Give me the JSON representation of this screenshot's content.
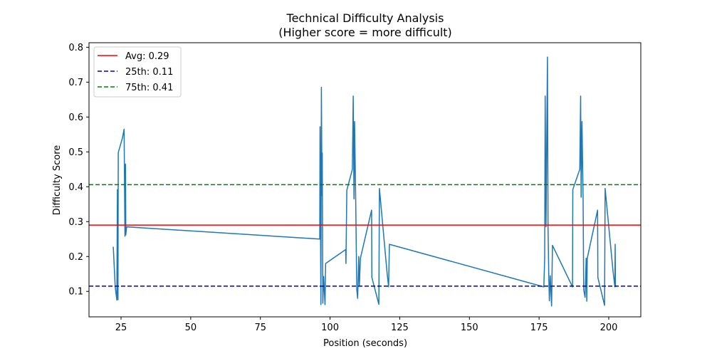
{
  "chart_data": {
    "type": "line",
    "title": "Technical Difficulty Analysis",
    "subtitle": "(Higher score = more difficult)",
    "xlabel": "Position (seconds)",
    "ylabel": "Difficulty Score",
    "xlim": [
      13.5,
      211.5
    ],
    "ylim": [
      0.027,
      0.813
    ],
    "xticks": [
      25,
      50,
      75,
      100,
      125,
      150,
      175,
      200
    ],
    "yticks": [
      0.1,
      0.2,
      0.3,
      0.4,
      0.5,
      0.6,
      0.7,
      0.8
    ],
    "grid": false,
    "legend_position": "top-left",
    "series": [
      {
        "color": "#1f77b4",
        "points": [
          [
            22.2,
            0.228
          ],
          [
            22.9,
            0.113
          ],
          [
            23.5,
            0.075
          ],
          [
            23.7,
            0.392
          ],
          [
            23.9,
            0.076
          ],
          [
            24.0,
            0.498
          ],
          [
            25.5,
            0.54
          ],
          [
            26.1,
            0.565
          ],
          [
            26.4,
            0.258
          ],
          [
            26.6,
            0.465
          ],
          [
            26.7,
            0.262
          ],
          [
            27.0,
            0.285
          ],
          [
            96.3,
            0.25
          ],
          [
            96.4,
            0.572
          ],
          [
            96.7,
            0.062
          ],
          [
            96.9,
            0.685
          ],
          [
            97.1,
            0.375
          ],
          [
            97.2,
            0.497
          ],
          [
            97.4,
            0.066
          ],
          [
            97.7,
            0.143
          ],
          [
            98.2,
            0.062
          ],
          [
            98.4,
            0.18
          ],
          [
            105.6,
            0.22
          ],
          [
            105.7,
            0.18
          ],
          [
            106.0,
            0.39
          ],
          [
            108.0,
            0.45
          ],
          [
            108.3,
            0.66
          ],
          [
            108.6,
            0.365
          ],
          [
            108.8,
            0.587
          ],
          [
            109.2,
            0.36
          ],
          [
            109.6,
            0.105
          ],
          [
            109.9,
            0.08
          ],
          [
            110.3,
            0.2
          ],
          [
            110.5,
            0.115
          ],
          [
            110.9,
            0.195
          ],
          [
            114.9,
            0.333
          ],
          [
            115.0,
            0.14
          ],
          [
            117.5,
            0.063
          ],
          [
            117.7,
            0.395
          ],
          [
            120.5,
            0.15
          ],
          [
            121.0,
            0.113
          ],
          [
            121.3,
            0.235
          ],
          [
            176.7,
            0.113
          ],
          [
            177.0,
            0.195
          ],
          [
            177.2,
            0.66
          ],
          [
            177.5,
            0.285
          ],
          [
            177.8,
            0.585
          ],
          [
            178.0,
            0.772
          ],
          [
            178.2,
            0.285
          ],
          [
            178.5,
            0.14
          ],
          [
            178.7,
            0.073
          ],
          [
            179.0,
            0.145
          ],
          [
            179.5,
            0.058
          ],
          [
            179.8,
            0.232
          ],
          [
            187.0,
            0.113
          ],
          [
            187.1,
            0.392
          ],
          [
            189.6,
            0.45
          ],
          [
            189.9,
            0.66
          ],
          [
            190.1,
            0.37
          ],
          [
            190.4,
            0.587
          ],
          [
            190.8,
            0.36
          ],
          [
            191.0,
            0.105
          ],
          [
            191.5,
            0.083
          ],
          [
            191.9,
            0.195
          ],
          [
            192.1,
            0.072
          ],
          [
            192.3,
            0.195
          ],
          [
            196.0,
            0.333
          ],
          [
            196.1,
            0.14
          ],
          [
            198.5,
            0.06
          ],
          [
            198.7,
            0.395
          ],
          [
            201.5,
            0.16
          ],
          [
            202.2,
            0.113
          ],
          [
            202.3,
            0.235
          ],
          [
            202.4,
            0.113
          ]
        ]
      }
    ],
    "reference_lines": [
      {
        "label": "Avg: 0.29",
        "value": 0.29,
        "color": "#ff0000",
        "dash": "solid"
      },
      {
        "label": "25th: 0.11",
        "value": 0.115,
        "color": "#0000bf",
        "dash": "dashed"
      },
      {
        "label": "75th: 0.41",
        "value": 0.406,
        "color": "#008000",
        "dash": "dashed"
      }
    ]
  }
}
